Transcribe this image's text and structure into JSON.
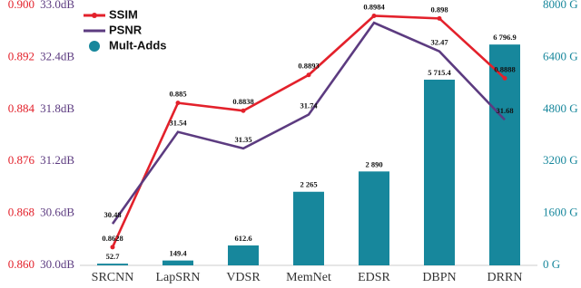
{
  "chart_data": {
    "type": "combo",
    "categories": [
      "SRCNN",
      "LapSRN",
      "VDSR",
      "MemNet",
      "EDSR",
      "DBPN",
      "DRRN"
    ],
    "series": [
      {
        "name": "SSIM",
        "type": "line",
        "axis": "y",
        "color": "#e3212b",
        "values": [
          0.8628,
          0.885,
          0.8838,
          0.8893,
          0.8984,
          0.898,
          0.8888
        ]
      },
      {
        "name": "PSNR",
        "type": "line",
        "axis": "y2",
        "color": "#5c3b80",
        "values": [
          30.48,
          31.54,
          31.35,
          31.74,
          32.8,
          32.47,
          31.68
        ],
        "value_labels": [
          "30.48",
          "31.54",
          "31.35",
          "31.74",
          null,
          "32.47",
          "31.68"
        ]
      },
      {
        "name": "Mult-Adds",
        "type": "bar",
        "axis": "y3",
        "color": "#17879c",
        "values": [
          52.7,
          149.4,
          612.6,
          2265,
          2890,
          5715.4,
          6796.9
        ],
        "value_labels": [
          "52.7",
          "149.4",
          "612.6",
          "2 265",
          "2 890",
          "5 715.4",
          "6 796.9"
        ]
      }
    ],
    "ylim": [
      0.86,
      0.9
    ],
    "yticks": [
      {
        "value": 0.86,
        "label": "0.860"
      },
      {
        "value": 0.868,
        "label": "0.868"
      },
      {
        "value": 0.876,
        "label": "0.876"
      },
      {
        "value": 0.884,
        "label": "0.884"
      },
      {
        "value": 0.892,
        "label": "0.892"
      },
      {
        "value": 0.9,
        "label": "0.900"
      }
    ],
    "y2lim": [
      30,
      33
    ],
    "y2ticks": [
      {
        "value": 30,
        "label": "30.0dB"
      },
      {
        "value": 30.6,
        "label": "30.6dB"
      },
      {
        "value": 31.2,
        "label": "31.2dB"
      },
      {
        "value": 31.8,
        "label": "31.8dB"
      },
      {
        "value": 32.4,
        "label": "32.4dB"
      },
      {
        "value": 33,
        "label": "33.0dB"
      }
    ],
    "y3lim": [
      0,
      8000
    ],
    "y3ticks": [
      {
        "value": 0,
        "label": "0 G"
      },
      {
        "value": 1600,
        "label": "1600 G"
      },
      {
        "value": 3200,
        "label": "3200 G"
      },
      {
        "value": 4800,
        "label": "4800 G"
      },
      {
        "value": 6400,
        "label": "6400 G"
      },
      {
        "value": 8000,
        "label": "8000 G"
      }
    ],
    "legend": "upper left"
  }
}
